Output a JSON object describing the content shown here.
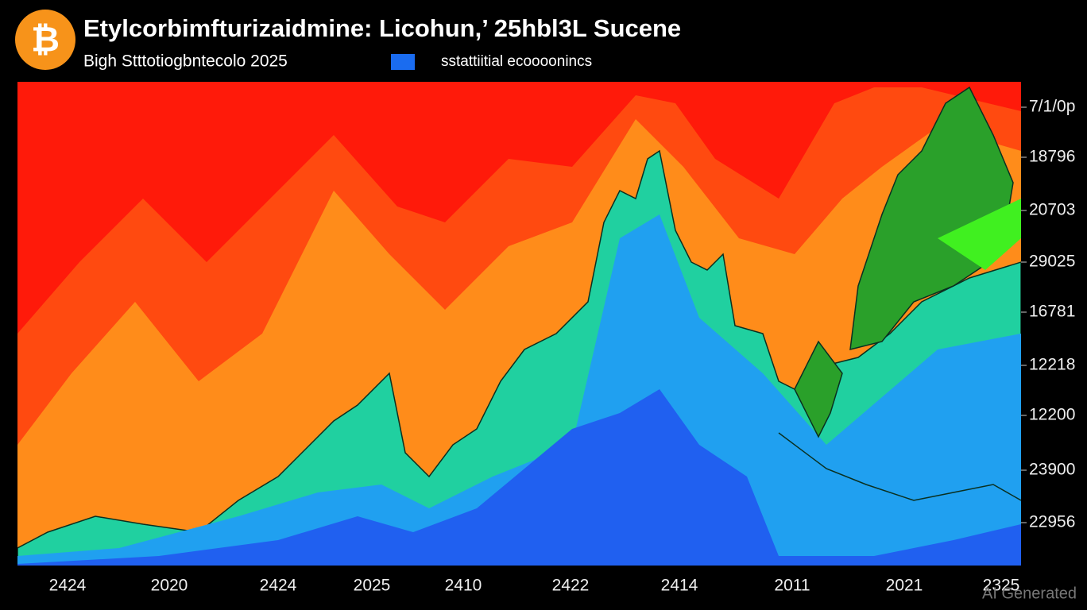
{
  "header": {
    "title": "Etylcorbimfturizaidmine: Licohun,’ 25hbl3L Sucene",
    "subtitle": "Bigh Stttotiogbntecolo 2025",
    "legend": "sstattiitial ecoooonincs"
  },
  "y_axis_labels": [
    "7/1/0p",
    "18796",
    "20703",
    "29025",
    "16781",
    "12218",
    "12200",
    "23900",
    "22956"
  ],
  "x_axis_labels": [
    "2424",
    "2020",
    "2424",
    "2025",
    "2410",
    "2422",
    "2414",
    "2011",
    "2021",
    "2325"
  ],
  "watermark": "AI Generated"
}
